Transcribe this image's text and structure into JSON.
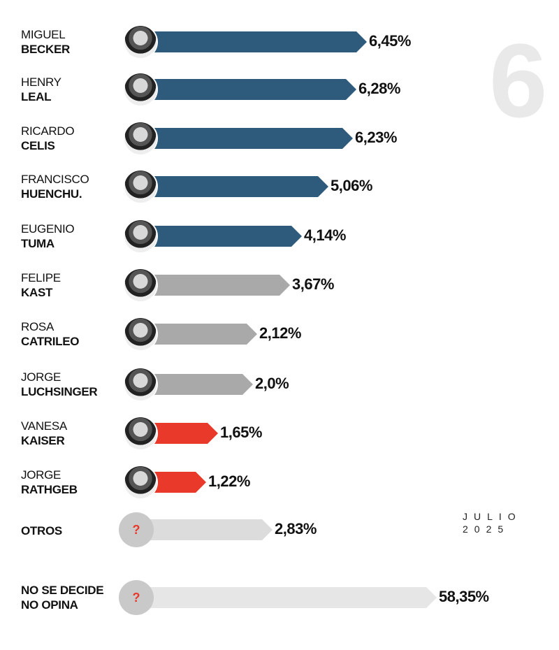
{
  "badge_number": "6",
  "date": {
    "month": "JULIO",
    "year": "2025"
  },
  "colors": {
    "blue": "#2e5b7c",
    "gray": "#a9a9a9",
    "red": "#e8392b",
    "light": "#dcdcdc",
    "lighter": "#e6e6e6"
  },
  "chart_data": {
    "type": "bar",
    "orientation": "horizontal",
    "categories": [
      "MIGUEL BECKER",
      "HENRY LEAL",
      "RICARDO CELIS",
      "FRANCISCO HUENCHU.",
      "EUGENIO TUMA",
      "FELIPE KAST",
      "ROSA CATRILEO",
      "JORGE LUCHSINGER",
      "VANESA KAISER",
      "JORGE RATHGEB",
      "OTROS",
      "NO SE DECIDE NO OPINA"
    ],
    "values": [
      6.45,
      6.28,
      6.23,
      5.06,
      4.14,
      3.67,
      2.12,
      2.0,
      1.65,
      1.22,
      2.83,
      58.35
    ],
    "rows": [
      {
        "first": "MIGUEL",
        "last": "BECKER",
        "label": "6,45%",
        "color": "blue",
        "icon": "candidate-photo"
      },
      {
        "first": "HENRY",
        "last": "LEAL",
        "label": "6,28%",
        "color": "blue",
        "icon": "candidate-photo"
      },
      {
        "first": "RICARDO",
        "last": "CELIS",
        "label": "6,23%",
        "color": "blue",
        "icon": "candidate-photo"
      },
      {
        "first": "FRANCISCO",
        "last": "HUENCHU.",
        "label": "5,06%",
        "color": "blue",
        "icon": "candidate-photo"
      },
      {
        "first": "EUGENIO",
        "last": "TUMA",
        "label": "4,14%",
        "color": "blue",
        "icon": "candidate-photo"
      },
      {
        "first": "FELIPE",
        "last": "KAST",
        "label": "3,67%",
        "color": "gray",
        "icon": "candidate-photo"
      },
      {
        "first": "ROSA",
        "last": "CATRILEO",
        "label": "2,12%",
        "color": "gray",
        "icon": "candidate-photo"
      },
      {
        "first": "JORGE",
        "last": "LUCHSINGER",
        "label": "2,0%",
        "color": "gray",
        "icon": "candidate-photo"
      },
      {
        "first": "VANESA",
        "last": "KAISER",
        "label": "1,65%",
        "color": "red",
        "icon": "candidate-photo"
      },
      {
        "first": "JORGE",
        "last": "RATHGEB",
        "label": "1,22%",
        "color": "red",
        "icon": "candidate-photo"
      },
      {
        "first": "",
        "last": "OTROS",
        "label": "2,83%",
        "color": "light",
        "icon": "question-mark",
        "icon_text": "?"
      },
      {
        "first": "NO SE DECIDE",
        "last": "NO OPINA",
        "label": "58,35%",
        "color": "lighter",
        "icon": "question-mark",
        "icon_text": "?"
      }
    ]
  }
}
